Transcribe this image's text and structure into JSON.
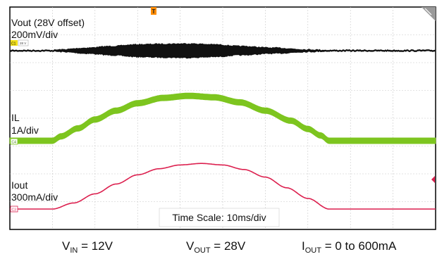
{
  "chart_data": {
    "type": "line",
    "grid": true,
    "x_unit": "ms",
    "x_range": [
      0,
      100
    ],
    "time_scale_label": "Time Scale: 10ms/div",
    "series": [
      {
        "name": "Vout (28V offset)",
        "scale": "200mV/div",
        "channel_tag": "C1",
        "channel_detail": "28 V",
        "color": "#111111",
        "envelope_ripple_amplitude": [
          0.0,
          0.0,
          0.02,
          0.08,
          0.14,
          0.2,
          0.22,
          0.23,
          0.2,
          0.14,
          0.08,
          0.02,
          0.0,
          0.0
        ],
        "x": [
          0,
          10,
          12,
          18,
          24,
          30,
          36,
          42,
          48,
          54,
          62,
          70,
          75,
          100
        ]
      },
      {
        "name": "IL",
        "scale": "1A/div",
        "channel_tag": "C4",
        "color": "#7dc51f",
        "x": [
          0,
          10,
          12,
          16,
          20,
          25,
          30,
          36,
          42,
          48,
          54,
          60,
          66,
          70,
          73,
          75,
          100
        ],
        "values": [
          0.0,
          0.0,
          0.15,
          0.42,
          0.72,
          1.02,
          1.27,
          1.45,
          1.52,
          1.47,
          1.3,
          1.02,
          0.68,
          0.4,
          0.18,
          0.0,
          0.0
        ]
      },
      {
        "name": "Iout",
        "scale": "300mA/div",
        "channel_tag": "C3",
        "color": "#dc1f4e",
        "x": [
          0,
          10,
          15,
          20,
          25,
          30,
          35,
          40,
          45,
          50,
          55,
          60,
          65,
          70,
          75,
          100
        ],
        "values": [
          0,
          0,
          0.08,
          0.2,
          0.33,
          0.45,
          0.53,
          0.58,
          0.6,
          0.58,
          0.52,
          0.42,
          0.28,
          0.14,
          0.0,
          0.0
        ]
      }
    ]
  },
  "conditions": {
    "vin_label": "V",
    "vin_sub": "IN",
    "vin_value": " = 12V",
    "vout_label": "V",
    "vout_sub": "OUT",
    "vout_value": " = 28V",
    "iout_label": "I",
    "iout_sub": "OUT",
    "iout_value": " = 0 to 600mA"
  },
  "markers": {
    "trigger": "T"
  }
}
